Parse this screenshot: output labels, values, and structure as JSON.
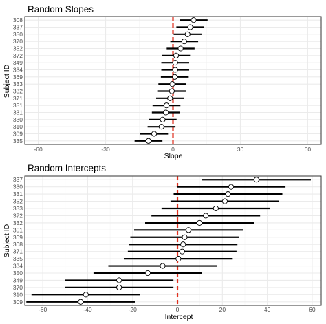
{
  "colors": {
    "background": "#ffffff",
    "panel_border": "#333333",
    "grid_major": "#ebebeb",
    "grid_minor": "#f5f5f5",
    "interval": "#000000",
    "point_fill": "#ffffff",
    "point_stroke": "#000000",
    "reference_line": "#e0301e",
    "tick_text": "#4d4d4d"
  },
  "chart_data": [
    {
      "type": "scatter",
      "variant": "dot-and-interval (caterpillar) plot",
      "title": "Random Slopes",
      "xlabel": "Slope",
      "ylabel": "Subject ID",
      "xlim": [
        -66,
        66
      ],
      "x_ticks": [
        -60,
        -30,
        0,
        30,
        60
      ],
      "x_tick_labels": [
        "-60",
        "-30",
        "0",
        "30",
        "60"
      ],
      "reference_line": {
        "x": 0,
        "style": "dashed",
        "color": "#e0301e"
      },
      "grid": true,
      "legend": "none",
      "categories": [
        "308",
        "337",
        "350",
        "370",
        "352",
        "372",
        "349",
        "334",
        "369",
        "333",
        "332",
        "371",
        "351",
        "331",
        "330",
        "310",
        "309",
        "335"
      ],
      "estimates": [
        9.2,
        7.7,
        6.5,
        5.0,
        3.4,
        1.4,
        1.0,
        1.0,
        0.8,
        -0.3,
        -0.5,
        -1.3,
        -2.9,
        -3.2,
        -4.6,
        -5.1,
        -8.4,
        -10.9
      ],
      "lower": [
        3.0,
        1.5,
        0.3,
        -1.2,
        -2.8,
        -4.8,
        -5.2,
        -5.2,
        -5.4,
        -6.5,
        -6.7,
        -7.5,
        -9.1,
        -9.4,
        -10.8,
        -11.3,
        -14.6,
        -17.1
      ],
      "upper": [
        15.4,
        13.9,
        12.7,
        11.2,
        9.6,
        7.6,
        7.2,
        7.2,
        7.0,
        5.9,
        5.7,
        4.9,
        3.3,
        3.0,
        1.6,
        1.1,
        -2.2,
        -4.7
      ]
    },
    {
      "type": "scatter",
      "variant": "dot-and-interval (caterpillar) plot",
      "title": "Random Intercepts",
      "xlabel": "Intercept",
      "ylabel": "Subject ID",
      "xlim": [
        -68,
        64
      ],
      "x_ticks": [
        -60,
        -40,
        -20,
        0,
        20,
        40,
        60
      ],
      "x_tick_labels": [
        "-60",
        "-40",
        "-20",
        "0",
        "20",
        "40",
        "60"
      ],
      "reference_line": {
        "x": 0,
        "style": "dashed",
        "color": "#e0301e"
      },
      "grid": true,
      "legend": "none",
      "categories": [
        "337",
        "330",
        "331",
        "352",
        "333",
        "372",
        "332",
        "351",
        "369",
        "308",
        "371",
        "335",
        "334",
        "350",
        "349",
        "370",
        "310",
        "309"
      ],
      "estimates": [
        35.2,
        23.9,
        22.5,
        21.1,
        17.1,
        12.6,
        9.8,
        4.9,
        3.2,
        2.5,
        2.1,
        0.4,
        -6.6,
        -13.2,
        -26.0,
        -26.0,
        -40.8,
        -43.1
      ],
      "lower": [
        11.0,
        -0.3,
        -1.7,
        -3.1,
        -7.1,
        -11.6,
        -14.4,
        -19.3,
        -21.0,
        -21.7,
        -22.1,
        -23.8,
        -30.8,
        -37.4,
        -50.2,
        -50.2,
        -65.0,
        -67.3
      ],
      "upper": [
        59.4,
        48.1,
        46.7,
        45.3,
        41.3,
        36.8,
        34.0,
        29.1,
        27.4,
        26.7,
        26.3,
        24.6,
        17.6,
        11.0,
        -1.8,
        -1.8,
        -16.6,
        -18.9
      ]
    }
  ]
}
